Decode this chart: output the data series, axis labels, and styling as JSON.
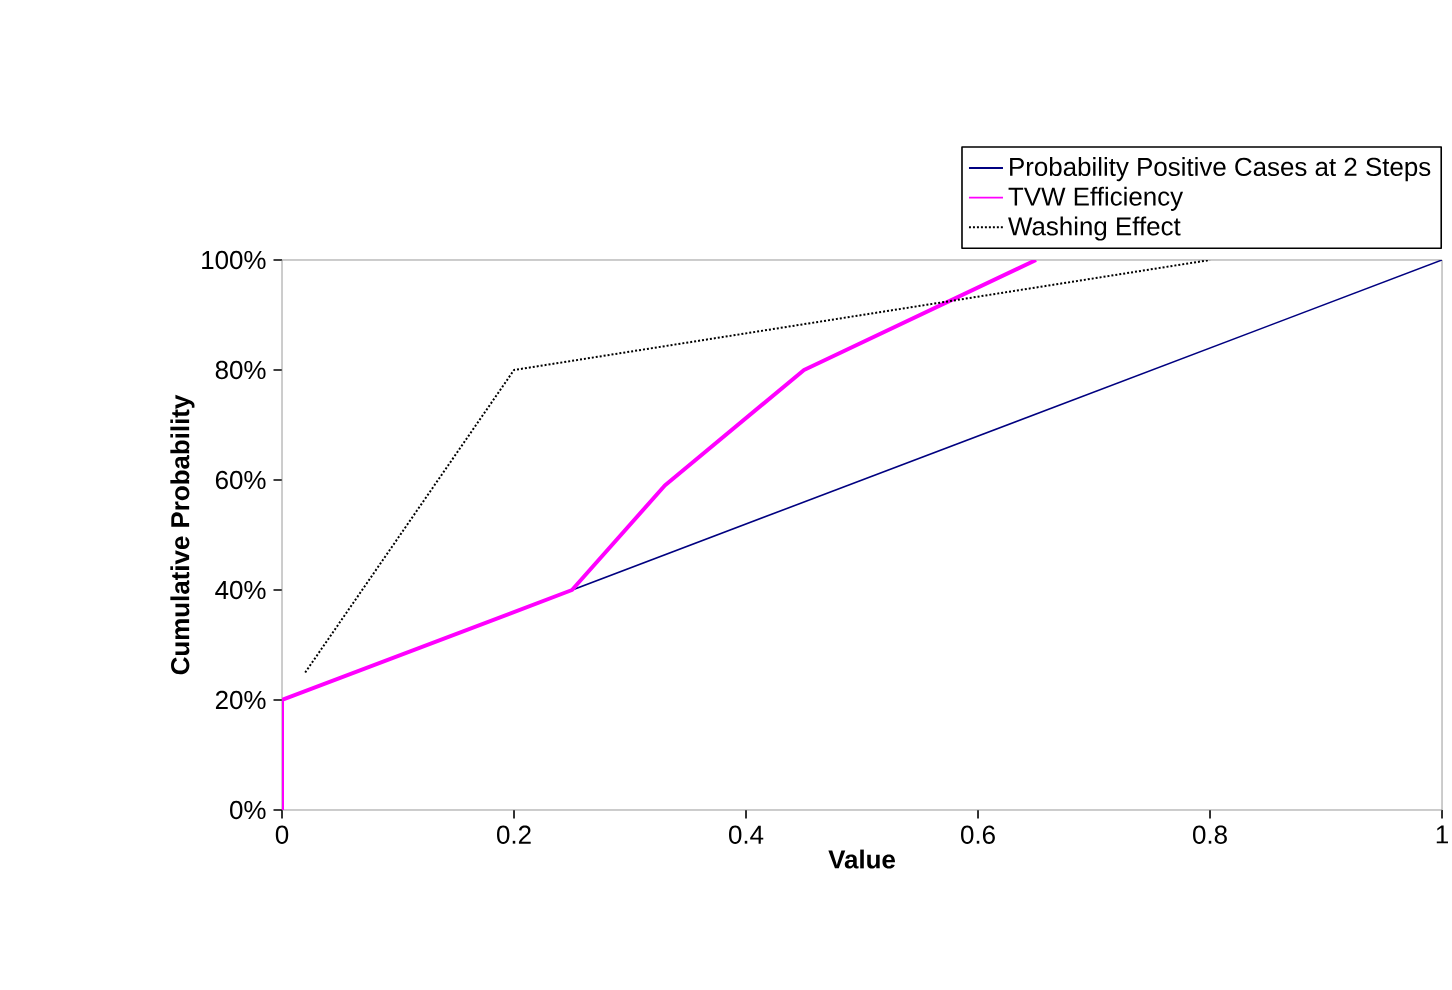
{
  "chart_data": {
    "type": "line",
    "xlabel": "Value",
    "ylabel": "Cumulative Probability",
    "series": [
      {
        "name": "Probability Positive Cases at 2 Steps",
        "color": "#000080",
        "line_style": "solid",
        "x": [
          0,
          1
        ],
        "values": [
          20,
          100
        ]
      },
      {
        "name": "TVW Efficiency",
        "color": "#ff00ff",
        "line_style": "solid",
        "x": [
          0,
          0,
          0.25,
          0.33,
          0.45,
          0.65
        ],
        "values": [
          0,
          20,
          40,
          59,
          80,
          100
        ]
      },
      {
        "name": "Washing Effect",
        "color": "#000000",
        "line_style": "dotted",
        "x": [
          0.02,
          0.2,
          0.8
        ],
        "values": [
          25,
          80,
          100
        ]
      }
    ],
    "xlim": [
      0,
      1
    ],
    "ylim": [
      0,
      100
    ],
    "xticks": [
      0,
      0.2,
      0.4,
      0.6,
      0.8,
      1
    ],
    "yticks": [
      {
        "value": 0,
        "label": "0%"
      },
      {
        "value": 20,
        "label": "20%"
      },
      {
        "value": 40,
        "label": "40%"
      },
      {
        "value": 60,
        "label": "60%"
      },
      {
        "value": 80,
        "label": "80%"
      },
      {
        "value": 100,
        "label": "100%"
      }
    ],
    "grid": false,
    "legend": "top",
    "marker": "none"
  }
}
